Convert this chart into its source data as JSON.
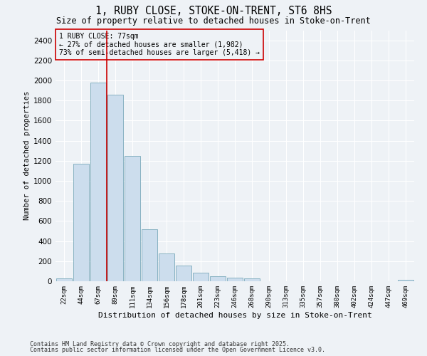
{
  "title_line1": "1, RUBY CLOSE, STOKE-ON-TRENT, ST6 8HS",
  "title_line2": "Size of property relative to detached houses in Stoke-on-Trent",
  "xlabel": "Distribution of detached houses by size in Stoke-on-Trent",
  "ylabel": "Number of detached properties",
  "categories": [
    "22sqm",
    "44sqm",
    "67sqm",
    "89sqm",
    "111sqm",
    "134sqm",
    "156sqm",
    "178sqm",
    "201sqm",
    "223sqm",
    "246sqm",
    "268sqm",
    "290sqm",
    "313sqm",
    "335sqm",
    "357sqm",
    "380sqm",
    "402sqm",
    "424sqm",
    "447sqm",
    "469sqm"
  ],
  "values": [
    25,
    1170,
    1982,
    1855,
    1245,
    520,
    275,
    155,
    85,
    47,
    37,
    30,
    0,
    0,
    0,
    0,
    0,
    0,
    0,
    0,
    15
  ],
  "bar_color": "#ccdded",
  "bar_edge_color": "#7aaabb",
  "vline_color": "#cc0000",
  "annotation_text": "1 RUBY CLOSE: 77sqm\n← 27% of detached houses are smaller (1,982)\n73% of semi-detached houses are larger (5,418) →",
  "annotation_box_color": "#cc0000",
  "ylim": [
    0,
    2500
  ],
  "yticks": [
    0,
    200,
    400,
    600,
    800,
    1000,
    1200,
    1400,
    1600,
    1800,
    2000,
    2200,
    2400
  ],
  "footer_line1": "Contains HM Land Registry data © Crown copyright and database right 2025.",
  "footer_line2": "Contains public sector information licensed under the Open Government Licence v3.0.",
  "bg_color": "#eef2f6",
  "grid_color": "#ffffff"
}
